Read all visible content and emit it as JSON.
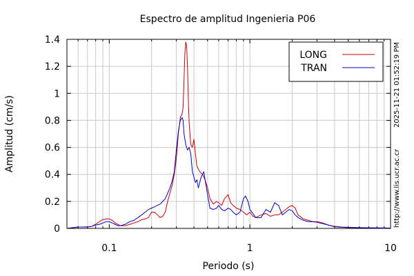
{
  "chart_data": {
    "type": "line",
    "title": "Espectro de amplitud Ingenieria P06",
    "xlabel": "Periodo (s)",
    "ylabel": "Amplitud (cm/s)",
    "xscale": "log",
    "xlim": [
      0.05,
      10
    ],
    "ylim": [
      0,
      1.4
    ],
    "x_tick_labels": [
      {
        "value": 0.1,
        "label": "0.1"
      },
      {
        "value": 1,
        "label": "1"
      },
      {
        "value": 10,
        "label": "10"
      }
    ],
    "y_tick_labels": [
      {
        "value": 0,
        "label": "0"
      },
      {
        "value": 0.2,
        "label": "0.2"
      },
      {
        "value": 0.4,
        "label": "0.4"
      },
      {
        "value": 0.6,
        "label": "0.6"
      },
      {
        "value": 0.8,
        "label": "0.8"
      },
      {
        "value": 1,
        "label": "1"
      },
      {
        "value": 1.2,
        "label": "1.2"
      },
      {
        "value": 1.4,
        "label": "1.4"
      }
    ],
    "grid": true,
    "legend_position": "top-right",
    "timestamp": "2025-11-21 01:52:19 PM",
    "source_url": "http://www.lis.ucr.ac.cr",
    "series": [
      {
        "name": "LONG",
        "color": "#cc0000",
        "points": [
          [
            0.05,
            0.0
          ],
          [
            0.055,
            0.005
          ],
          [
            0.06,
            0.01
          ],
          [
            0.065,
            0.01
          ],
          [
            0.07,
            0.012
          ],
          [
            0.075,
            0.015
          ],
          [
            0.08,
            0.03
          ],
          [
            0.085,
            0.05
          ],
          [
            0.09,
            0.065
          ],
          [
            0.095,
            0.07
          ],
          [
            0.1,
            0.07
          ],
          [
            0.105,
            0.06
          ],
          [
            0.11,
            0.04
          ],
          [
            0.115,
            0.03
          ],
          [
            0.12,
            0.02
          ],
          [
            0.13,
            0.02
          ],
          [
            0.14,
            0.03
          ],
          [
            0.15,
            0.04
          ],
          [
            0.16,
            0.05
          ],
          [
            0.17,
            0.065
          ],
          [
            0.18,
            0.07
          ],
          [
            0.19,
            0.08
          ],
          [
            0.2,
            0.12
          ],
          [
            0.21,
            0.12
          ],
          [
            0.22,
            0.1
          ],
          [
            0.23,
            0.08
          ],
          [
            0.24,
            0.09
          ],
          [
            0.25,
            0.12
          ],
          [
            0.26,
            0.2
          ],
          [
            0.27,
            0.26
          ],
          [
            0.28,
            0.32
          ],
          [
            0.29,
            0.4
          ],
          [
            0.3,
            0.52
          ],
          [
            0.31,
            0.7
          ],
          [
            0.32,
            0.82
          ],
          [
            0.33,
            0.85
          ],
          [
            0.335,
            0.9
          ],
          [
            0.34,
            1.1
          ],
          [
            0.345,
            1.3
          ],
          [
            0.35,
            1.38
          ],
          [
            0.355,
            1.35
          ],
          [
            0.36,
            1.2
          ],
          [
            0.365,
            0.95
          ],
          [
            0.37,
            0.78
          ],
          [
            0.38,
            0.62
          ],
          [
            0.39,
            0.6
          ],
          [
            0.4,
            0.66
          ],
          [
            0.41,
            0.55
          ],
          [
            0.42,
            0.46
          ],
          [
            0.44,
            0.42
          ],
          [
            0.46,
            0.4
          ],
          [
            0.48,
            0.36
          ],
          [
            0.5,
            0.3
          ],
          [
            0.52,
            0.22
          ],
          [
            0.55,
            0.18
          ],
          [
            0.58,
            0.2
          ],
          [
            0.6,
            0.19
          ],
          [
            0.63,
            0.17
          ],
          [
            0.66,
            0.22
          ],
          [
            0.7,
            0.25
          ],
          [
            0.73,
            0.19
          ],
          [
            0.76,
            0.17
          ],
          [
            0.8,
            0.15
          ],
          [
            0.85,
            0.14
          ],
          [
            0.9,
            0.12
          ],
          [
            0.95,
            0.1
          ],
          [
            1.0,
            0.12
          ],
          [
            1.05,
            0.09
          ],
          [
            1.1,
            0.08
          ],
          [
            1.2,
            0.1
          ],
          [
            1.3,
            0.11
          ],
          [
            1.4,
            0.09
          ],
          [
            1.5,
            0.1
          ],
          [
            1.6,
            0.1
          ],
          [
            1.7,
            0.12
          ],
          [
            1.8,
            0.14
          ],
          [
            1.9,
            0.16
          ],
          [
            2.0,
            0.17
          ],
          [
            2.1,
            0.15
          ],
          [
            2.2,
            0.1
          ],
          [
            2.4,
            0.07
          ],
          [
            2.6,
            0.06
          ],
          [
            2.8,
            0.05
          ],
          [
            3.0,
            0.05
          ],
          [
            3.3,
            0.04
          ],
          [
            3.6,
            0.025
          ],
          [
            4.0,
            0.015
          ],
          [
            4.5,
            0.01
          ],
          [
            5.0,
            0.008
          ],
          [
            6.0,
            0.006
          ],
          [
            7.0,
            0.005
          ],
          [
            8.0,
            0.004
          ],
          [
            9.0,
            0.003
          ],
          [
            10.0,
            0.002
          ]
        ]
      },
      {
        "name": "TRAN",
        "color": "#0000cc",
        "points": [
          [
            0.05,
            0.0
          ],
          [
            0.055,
            0.006
          ],
          [
            0.06,
            0.01
          ],
          [
            0.065,
            0.01
          ],
          [
            0.07,
            0.01
          ],
          [
            0.075,
            0.015
          ],
          [
            0.08,
            0.025
          ],
          [
            0.085,
            0.03
          ],
          [
            0.09,
            0.04
          ],
          [
            0.095,
            0.05
          ],
          [
            0.1,
            0.05
          ],
          [
            0.105,
            0.04
          ],
          [
            0.11,
            0.03
          ],
          [
            0.115,
            0.02
          ],
          [
            0.12,
            0.02
          ],
          [
            0.13,
            0.03
          ],
          [
            0.14,
            0.05
          ],
          [
            0.15,
            0.06
          ],
          [
            0.16,
            0.08
          ],
          [
            0.17,
            0.1
          ],
          [
            0.18,
            0.12
          ],
          [
            0.19,
            0.14
          ],
          [
            0.2,
            0.15
          ],
          [
            0.21,
            0.16
          ],
          [
            0.22,
            0.17
          ],
          [
            0.23,
            0.18
          ],
          [
            0.24,
            0.2
          ],
          [
            0.25,
            0.22
          ],
          [
            0.26,
            0.26
          ],
          [
            0.27,
            0.3
          ],
          [
            0.28,
            0.35
          ],
          [
            0.29,
            0.42
          ],
          [
            0.3,
            0.58
          ],
          [
            0.31,
            0.72
          ],
          [
            0.32,
            0.8
          ],
          [
            0.33,
            0.82
          ],
          [
            0.335,
            0.8
          ],
          [
            0.34,
            0.7
          ],
          [
            0.35,
            0.62
          ],
          [
            0.36,
            0.58
          ],
          [
            0.37,
            0.6
          ],
          [
            0.38,
            0.55
          ],
          [
            0.39,
            0.42
          ],
          [
            0.4,
            0.38
          ],
          [
            0.41,
            0.34
          ],
          [
            0.42,
            0.36
          ],
          [
            0.43,
            0.3
          ],
          [
            0.45,
            0.38
          ],
          [
            0.47,
            0.42
          ],
          [
            0.48,
            0.36
          ],
          [
            0.5,
            0.25
          ],
          [
            0.52,
            0.15
          ],
          [
            0.55,
            0.14
          ],
          [
            0.58,
            0.15
          ],
          [
            0.6,
            0.17
          ],
          [
            0.63,
            0.14
          ],
          [
            0.66,
            0.13
          ],
          [
            0.7,
            0.15
          ],
          [
            0.73,
            0.14
          ],
          [
            0.76,
            0.12
          ],
          [
            0.8,
            0.1
          ],
          [
            0.85,
            0.12
          ],
          [
            0.9,
            0.22
          ],
          [
            0.93,
            0.24
          ],
          [
            0.97,
            0.2
          ],
          [
            1.0,
            0.14
          ],
          [
            1.05,
            0.11
          ],
          [
            1.1,
            0.08
          ],
          [
            1.2,
            0.08
          ],
          [
            1.3,
            0.14
          ],
          [
            1.4,
            0.12
          ],
          [
            1.5,
            0.19
          ],
          [
            1.6,
            0.17
          ],
          [
            1.7,
            0.1
          ],
          [
            1.8,
            0.12
          ],
          [
            1.9,
            0.14
          ],
          [
            2.0,
            0.13
          ],
          [
            2.1,
            0.1
          ],
          [
            2.2,
            0.08
          ],
          [
            2.4,
            0.06
          ],
          [
            2.6,
            0.05
          ],
          [
            2.8,
            0.05
          ],
          [
            3.0,
            0.045
          ],
          [
            3.3,
            0.035
          ],
          [
            3.6,
            0.025
          ],
          [
            4.0,
            0.012
          ],
          [
            4.5,
            0.008
          ],
          [
            5.0,
            0.006
          ],
          [
            6.0,
            0.005
          ],
          [
            7.0,
            0.004
          ],
          [
            8.0,
            0.003
          ],
          [
            9.0,
            0.003
          ],
          [
            10.0,
            0.002
          ]
        ]
      }
    ]
  }
}
